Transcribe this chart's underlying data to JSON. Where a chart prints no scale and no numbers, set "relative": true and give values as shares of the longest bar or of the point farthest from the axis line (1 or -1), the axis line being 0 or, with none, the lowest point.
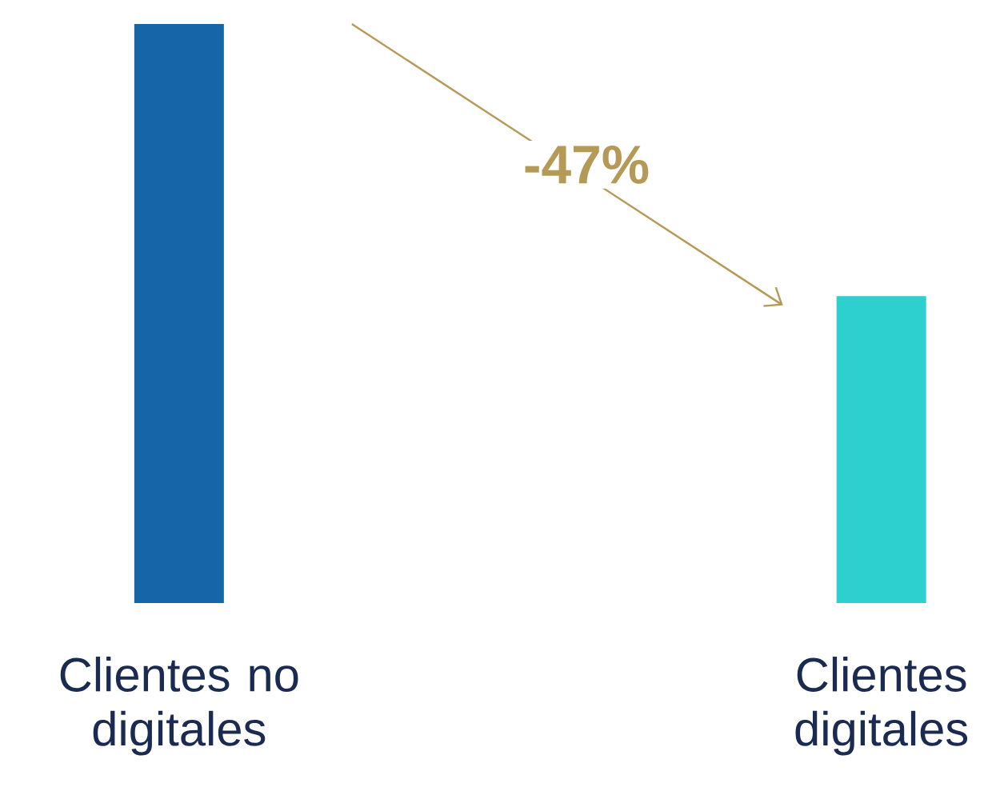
{
  "chart_data": {
    "type": "bar",
    "relative": true,
    "categories": [
      "Clientes no digitales",
      "Clientes digitales"
    ],
    "values": [
      1,
      0.53
    ],
    "colors": [
      "#1565a8",
      "#2ecfcf"
    ],
    "annotations": [
      "-47%"
    ]
  }
}
